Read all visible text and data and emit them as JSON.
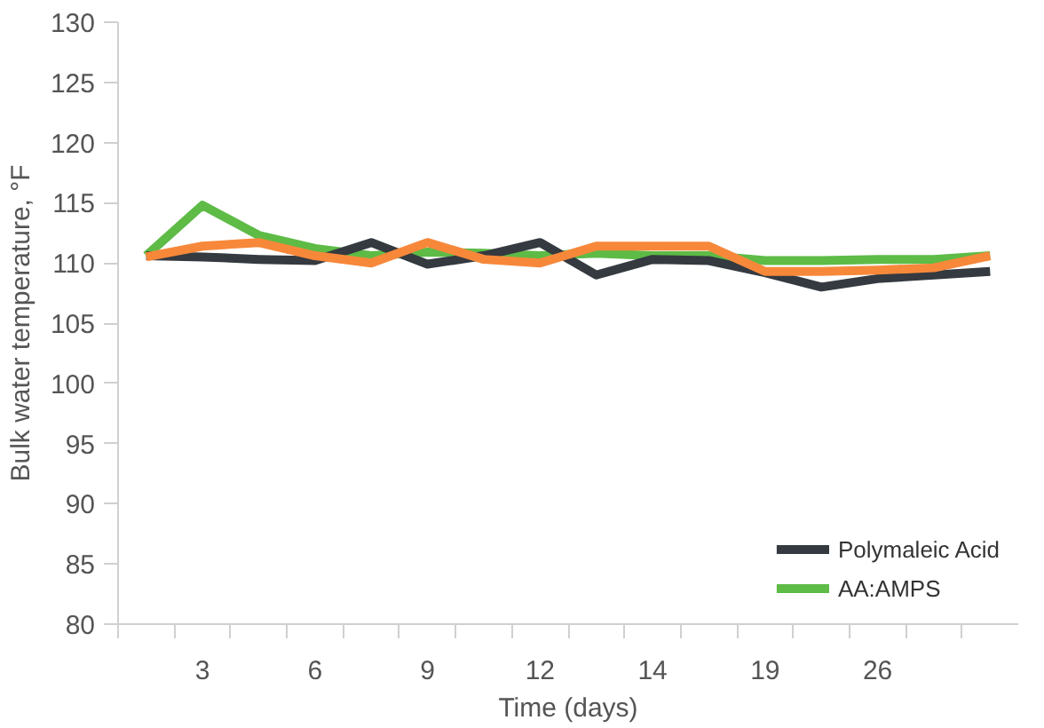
{
  "chart_data": {
    "type": "line",
    "xlabel": "Time (days)",
    "ylabel": "Bulk water temperature, °F",
    "categories": [
      null,
      "3",
      null,
      "6",
      null,
      "9",
      null,
      "12",
      null,
      "14",
      null,
      "19",
      null,
      "26",
      null,
      null
    ],
    "ylim": [
      80,
      130
    ],
    "yticks": [
      80,
      85,
      90,
      95,
      100,
      105,
      110,
      115,
      120,
      125,
      130
    ],
    "grid": false,
    "legend": "bottom right",
    "marker": "none",
    "line_style": "solid",
    "series": [
      {
        "name": "AA:AMPS",
        "color": "#5dbb46",
        "values": [
          110.6,
          114.8,
          112.3,
          111.2,
          110.6,
          110.9,
          110.8,
          110.6,
          110.8,
          110.6,
          110.6,
          110.2,
          110.2,
          110.3,
          110.3,
          110.6
        ]
      },
      {
        "name": "Polymaleic Acid",
        "color": "#343a40",
        "values": [
          110.6,
          110.5,
          110.3,
          110.2,
          111.7,
          109.9,
          110.6,
          111.7,
          109.0,
          110.3,
          110.2,
          109.2,
          108.0,
          108.7,
          109.0,
          109.3
        ]
      },
      {
        "color": "#f7883a",
        "values": [
          110.5,
          111.4,
          111.7,
          110.6,
          110.0,
          111.7,
          110.3,
          110.0,
          111.4,
          111.4,
          111.4,
          109.3,
          109.3,
          109.4,
          109.6,
          110.6
        ]
      }
    ]
  }
}
